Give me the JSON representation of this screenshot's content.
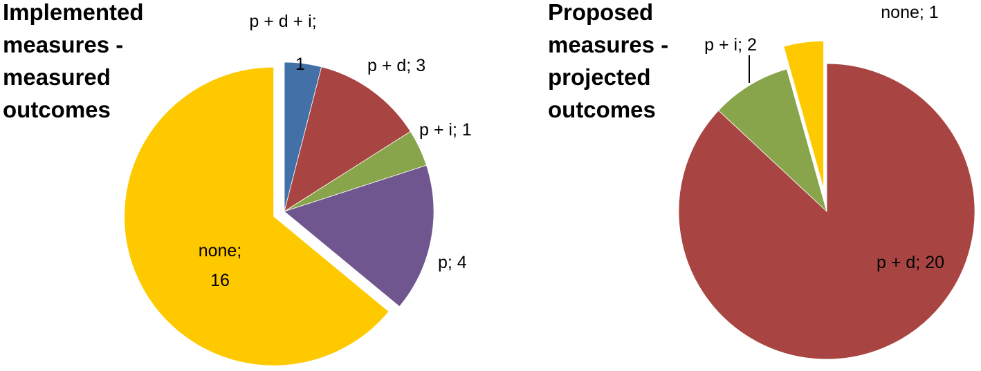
{
  "chart_data": [
    {
      "type": "pie",
      "title": "Implemented measures - measured outcomes",
      "categories": [
        "p + d + i",
        "p + d",
        "p + i",
        "p",
        "none"
      ],
      "values": [
        1,
        3,
        1,
        4,
        16
      ],
      "colors": [
        "#4470A8",
        "#A84542",
        "#88A54B",
        "#6F568F",
        "#FFC900"
      ],
      "labels": [
        "p + d + i;",
        "1",
        "p + d; 3",
        "p + i; 1",
        "p; 4",
        "none;",
        "16"
      ],
      "exploded": [
        "none"
      ],
      "start_angle": "12 o'clock, clockwise",
      "legend": "none (data labels)"
    },
    {
      "type": "pie",
      "title": "Proposed measures - projected outcomes",
      "categories": [
        "p + d",
        "p + i",
        "none"
      ],
      "values": [
        20,
        2,
        1
      ],
      "colors": [
        "#A84542",
        "#88A54B",
        "#FFC900"
      ],
      "labels": [
        "p + d; 20",
        "p + i; 2",
        "none; 1"
      ],
      "exploded": [
        "none"
      ],
      "start_angle": "12 o'clock, clockwise",
      "legend": "none (data labels)"
    }
  ],
  "left": {
    "title": "Implemented\nmeasures -\nmeasured\noutcomes",
    "labels": {
      "pdi_line1": "p + d + i;",
      "pdi_line2": "1",
      "pd": "p + d; 3",
      "pi": "p + i; 1",
      "p": "p; 4",
      "none_line1": "none;",
      "none_line2": "16"
    }
  },
  "right": {
    "title": "Proposed\nmeasures -\nprojected\noutcomes",
    "labels": {
      "none": "none; 1",
      "pi": "p + i; 2",
      "pd": "p + d; 20"
    }
  }
}
